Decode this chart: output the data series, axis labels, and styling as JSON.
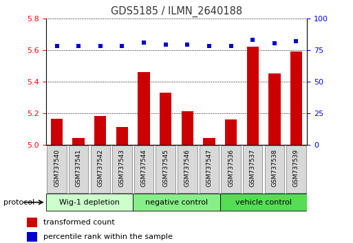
{
  "title": "GDS5185 / ILMN_2640188",
  "samples": [
    "GSM737540",
    "GSM737541",
    "GSM737542",
    "GSM737543",
    "GSM737544",
    "GSM737545",
    "GSM737546",
    "GSM737547",
    "GSM737536",
    "GSM737537",
    "GSM737538",
    "GSM737539"
  ],
  "red_values": [
    5.165,
    5.04,
    5.18,
    5.11,
    5.46,
    5.33,
    5.21,
    5.04,
    5.16,
    5.62,
    5.45,
    5.59
  ],
  "blue_values": [
    78,
    78,
    78,
    78,
    81,
    79,
    79,
    78,
    78,
    83,
    80,
    82
  ],
  "ylim_left": [
    5.0,
    5.8
  ],
  "ylim_right": [
    0,
    100
  ],
  "yticks_left": [
    5.0,
    5.2,
    5.4,
    5.6,
    5.8
  ],
  "yticks_right": [
    0,
    25,
    50,
    75,
    100
  ],
  "groups": [
    {
      "label": "Wig-1 depletion",
      "indices": [
        0,
        1,
        2,
        3
      ],
      "color": "#ccffcc"
    },
    {
      "label": "negative control",
      "indices": [
        4,
        5,
        6,
        7
      ],
      "color": "#88ee88"
    },
    {
      "label": "vehicle control",
      "indices": [
        8,
        9,
        10,
        11
      ],
      "color": "#55dd55"
    }
  ],
  "protocol_label": "protocol",
  "legend_red": "transformed count",
  "legend_blue": "percentile rank within the sample",
  "bar_color": "#cc0000",
  "dot_color": "#0000cc",
  "bar_width": 0.55,
  "base_value": 5.0,
  "title_color": "#333333",
  "sample_box_color": "#d8d8d8",
  "sample_box_edge": "#888888"
}
